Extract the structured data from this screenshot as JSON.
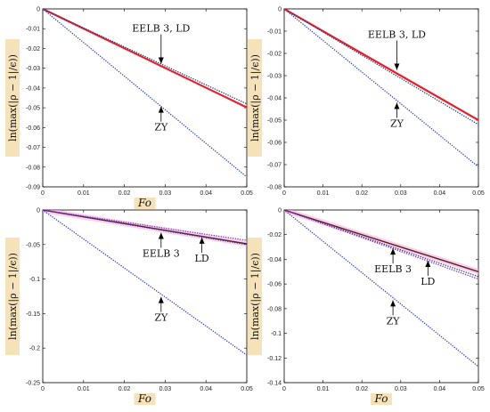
{
  "chart_data": [
    {
      "type": "line",
      "title": "",
      "xlabel": "Fo",
      "ylabel": "ln(max(|ρ − 1|/ϵ))",
      "xlim": [
        0,
        0.05
      ],
      "ylim": [
        -0.09,
        0
      ],
      "xticks": [
        "0",
        "0.01",
        "0.02",
        "0.03",
        "0.04",
        "0.05"
      ],
      "yticks": [
        "0",
        "-0.01",
        "-0.02",
        "-0.03",
        "-0.04",
        "-0.05",
        "-0.06",
        "-0.07",
        "-0.08",
        "-0.09"
      ],
      "series": [
        {
          "color": "#e8202a",
          "style": "solid-thick",
          "x": [
            0,
            0.05
          ],
          "y": [
            0,
            -0.0498
          ]
        },
        {
          "color": "#2a3a8f",
          "style": "dotted",
          "x": [
            0,
            0.05
          ],
          "y": [
            0,
            -0.048
          ]
        },
        {
          "color": "#3344cc",
          "style": "dotted",
          "x": [
            0,
            0.05
          ],
          "y": [
            0,
            -0.085
          ]
        }
      ],
      "annotations": [
        {
          "text": "EELB 3, LD",
          "x": 0.029,
          "y": -0.0295,
          "pos": "above"
        },
        {
          "text": "ZY",
          "x": 0.029,
          "y": -0.048,
          "pos": "below"
        }
      ]
    },
    {
      "type": "line",
      "title": "",
      "xlabel": "",
      "ylabel": "ln(max(|ρ − 1|/ϵ))",
      "xlim": [
        0,
        0.05
      ],
      "ylim": [
        -0.08,
        0
      ],
      "xticks": [
        "0",
        "0.01",
        "0.02",
        "0.03",
        "0.04",
        "0.05"
      ],
      "yticks": [
        "0",
        "-0.01",
        "-0.02",
        "-0.03",
        "-0.04",
        "-0.05",
        "-0.06",
        "-0.07",
        "-0.08"
      ],
      "series": [
        {
          "color": "#e8202a",
          "style": "solid-thick",
          "x": [
            0,
            0.05
          ],
          "y": [
            0,
            -0.05
          ]
        },
        {
          "color": "#2a3a8f",
          "style": "dotted",
          "x": [
            0,
            0.05
          ],
          "y": [
            0,
            -0.052
          ]
        },
        {
          "color": "#3344cc",
          "style": "dotted",
          "x": [
            0,
            0.05
          ],
          "y": [
            0,
            -0.071
          ]
        }
      ],
      "annotations": [
        {
          "text": "EELB 3, LD",
          "x": 0.029,
          "y": -0.029,
          "pos": "above"
        },
        {
          "text": "ZY",
          "x": 0.029,
          "y": -0.041,
          "pos": "below"
        }
      ]
    },
    {
      "type": "line",
      "title": "",
      "xlabel": "Fo",
      "ylabel": "ln(max(|ρ − 1|/ϵ))",
      "xlim": [
        0,
        0.05
      ],
      "ylim": [
        -0.25,
        0
      ],
      "xticks": [
        "0",
        "0.01",
        "0.02",
        "0.03",
        "0.04",
        "0.05"
      ],
      "yticks": [
        "0",
        "-0.05",
        "-0.1",
        "-0.15",
        "-0.2",
        "-0.25"
      ],
      "series": [
        {
          "color": "#f2a6dc",
          "style": "band",
          "x": [
            0,
            0.05
          ],
          "y": [
            0,
            -0.049
          ]
        },
        {
          "color": "#5a1f1f",
          "style": "solid",
          "x": [
            0,
            0.05
          ],
          "y": [
            0,
            -0.049
          ]
        },
        {
          "color": "#2a3a8f",
          "style": "dotted",
          "x": [
            0,
            0.05
          ],
          "y": [
            0,
            -0.05
          ]
        },
        {
          "color": "#8a2bd6",
          "style": "dotted",
          "x": [
            0,
            0.05
          ],
          "y": [
            0,
            -0.044
          ]
        },
        {
          "color": "#3344cc",
          "style": "dotted",
          "x": [
            0,
            0.05
          ],
          "y": [
            0,
            -0.21
          ]
        }
      ],
      "annotations": [
        {
          "text": "EELB 3",
          "x": 0.029,
          "y": -0.029,
          "pos": "below"
        },
        {
          "text": "LD",
          "x": 0.039,
          "y": -0.036,
          "pos": "below"
        },
        {
          "text": "ZY",
          "x": 0.029,
          "y": -0.122,
          "pos": "below"
        }
      ]
    },
    {
      "type": "line",
      "title": "",
      "xlabel": "Fo",
      "ylabel": "ln(max(|ρ − 1|/ϵ))",
      "xlim": [
        0,
        0.05
      ],
      "ylim": [
        -0.14,
        0
      ],
      "xticks": [
        "0",
        "0.01",
        "0.02",
        "0.03",
        "0.04",
        "0.05"
      ],
      "yticks": [
        "0",
        "-0.02",
        "-0.04",
        "-0.06",
        "-0.08",
        "-0.1",
        "-0.12",
        "-0.14"
      ],
      "series": [
        {
          "color": "#f2a6dc",
          "style": "band",
          "x": [
            0,
            0.05
          ],
          "y": [
            0,
            -0.05
          ]
        },
        {
          "color": "#5a1f1f",
          "style": "solid",
          "x": [
            0,
            0.05
          ],
          "y": [
            0,
            -0.05
          ]
        },
        {
          "color": "#2a3a8f",
          "style": "dotted",
          "x": [
            0,
            0.05
          ],
          "y": [
            0,
            -0.054
          ]
        },
        {
          "color": "#8a2bd6",
          "style": "dotted",
          "x": [
            0,
            0.05
          ],
          "y": [
            0,
            -0.056
          ]
        },
        {
          "color": "#3344cc",
          "style": "dotted",
          "x": [
            0,
            0.05
          ],
          "y": [
            0,
            -0.127
          ]
        }
      ],
      "annotations": [
        {
          "text": "EELB 3",
          "x": 0.028,
          "y": -0.029,
          "pos": "below"
        },
        {
          "text": "LD",
          "x": 0.037,
          "y": -0.039,
          "pos": "below"
        },
        {
          "text": "ZY",
          "x": 0.028,
          "y": -0.071,
          "pos": "below"
        }
      ]
    }
  ],
  "colors": {
    "label_highlight": "#f5e2b8",
    "axis": "#000000"
  }
}
